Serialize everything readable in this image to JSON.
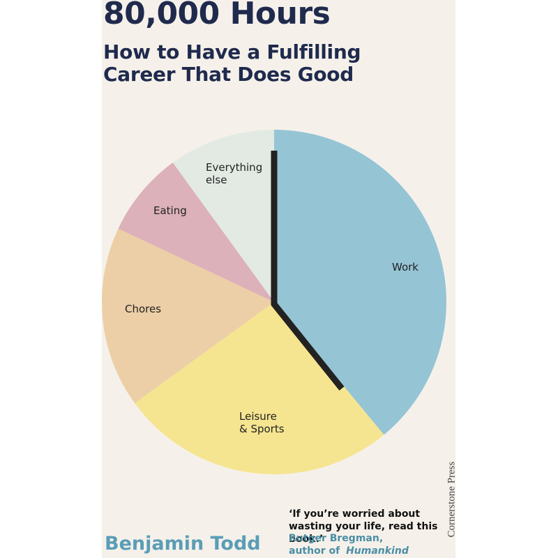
{
  "title": "80,000 Hours",
  "subtitle": [
    "How to Have a Fulfilling",
    "Career That Does Good"
  ],
  "chart_data": {
    "type": "pie",
    "categories": [
      "Work",
      "Leisure & Sports",
      "Chores",
      "Eating",
      "Everything else"
    ],
    "values": [
      39,
      26,
      17,
      8,
      10
    ],
    "colors": [
      "#95c4d5",
      "#f6e590",
      "#eccfa6",
      "#dcb1b9",
      "#e2eae3"
    ]
  },
  "quote": "‘If you’re worried about wasting your life, read this book.’",
  "quote_author": "Rutger Bregman,",
  "quote_role": "author of",
  "quote_book": "Humankind",
  "author": "Benjamin Todd",
  "publisher": "Cornerstone Press"
}
